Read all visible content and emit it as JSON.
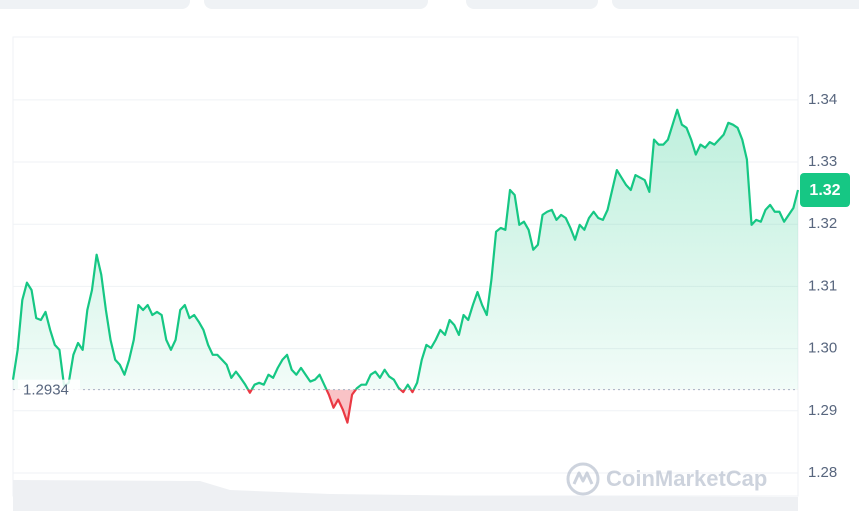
{
  "chart_data": {
    "type": "line",
    "brand": "CoinMarketCap",
    "color_up": "#16c784",
    "color_down": "#ea3943",
    "reference": 1.2934,
    "last_price_label": "1.32",
    "ylim": [
      1.2763,
      1.3501
    ],
    "yticks": [
      1.28,
      1.29,
      {
        "value": 1.3,
        "label": "1.30"
      },
      1.31,
      1.32,
      1.33,
      1.34
    ],
    "grid": true,
    "values": [
      1.295,
      1.2998,
      1.3078,
      1.3106,
      1.3094,
      1.3049,
      1.3046,
      1.3059,
      1.303,
      1.3006,
      1.2998,
      1.294,
      1.2945,
      1.299,
      1.3009,
      1.2998,
      1.3062,
      1.3094,
      1.3151,
      1.3119,
      1.3062,
      1.3014,
      1.2982,
      1.2974,
      1.2958,
      1.2982,
      1.3014,
      1.307,
      1.3062,
      1.307,
      1.3054,
      1.3059,
      1.3054,
      1.3014,
      1.2998,
      1.3014,
      1.3062,
      1.307,
      1.3049,
      1.3054,
      1.3043,
      1.303,
      1.3006,
      1.299,
      1.299,
      1.2982,
      1.2974,
      1.2953,
      1.2963,
      1.2953,
      1.2942,
      1.2929,
      1.2942,
      1.2945,
      1.2942,
      1.2958,
      1.2953,
      1.2969,
      1.2982,
      1.299,
      1.2966,
      1.2958,
      1.2969,
      1.2958,
      1.2947,
      1.295,
      1.2958,
      1.2942,
      1.2926,
      1.2905,
      1.2918,
      1.2902,
      1.2881,
      1.2926,
      1.2936,
      1.2942,
      1.2942,
      1.2958,
      1.2963,
      1.2953,
      1.2966,
      1.2955,
      1.295,
      1.2937,
      1.293,
      1.2942,
      1.293,
      1.2945,
      1.2982,
      1.3006,
      1.3001,
      1.3014,
      1.303,
      1.3022,
      1.3046,
      1.3038,
      1.3022,
      1.3054,
      1.3046,
      1.307,
      1.3091,
      1.307,
      1.3054,
      1.3111,
      1.3188,
      1.3194,
      1.3191,
      1.3255,
      1.3247,
      1.3199,
      1.3204,
      1.3191,
      1.3159,
      1.3167,
      1.3215,
      1.322,
      1.3223,
      1.3207,
      1.3215,
      1.321,
      1.3194,
      1.3175,
      1.3199,
      1.3191,
      1.321,
      1.322,
      1.321,
      1.3207,
      1.3223,
      1.3255,
      1.3287,
      1.3275,
      1.3263,
      1.3255,
      1.3279,
      1.3275,
      1.3271,
      1.3252,
      1.3336,
      1.3328,
      1.3328,
      1.3336,
      1.336,
      1.3384,
      1.336,
      1.3355,
      1.3336,
      1.3312,
      1.3328,
      1.3323,
      1.3332,
      1.3328,
      1.3336,
      1.3344,
      1.3363,
      1.336,
      1.3355,
      1.3336,
      1.3304,
      1.3199,
      1.3207,
      1.3204,
      1.3223,
      1.3231,
      1.322,
      1.322,
      1.3204,
      1.3215,
      1.3226,
      1.3255
    ]
  }
}
